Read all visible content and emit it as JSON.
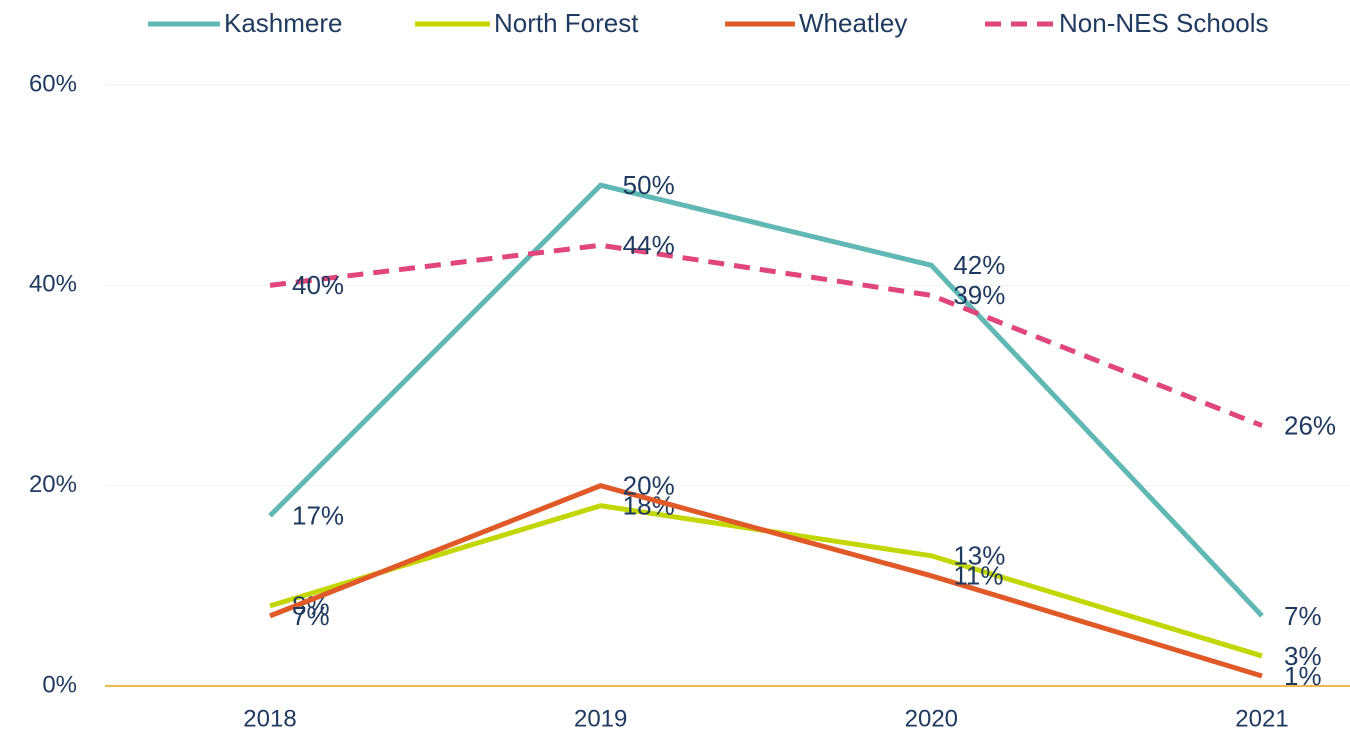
{
  "chart_data": {
    "type": "line",
    "categories": [
      "2018",
      "2019",
      "2020",
      "2021"
    ],
    "series": [
      {
        "name": "Kashmere",
        "color": "#5fb8b4",
        "values": [
          17,
          50,
          42,
          7
        ],
        "value_labels": [
          "17%",
          "50%",
          "42%",
          "7%"
        ]
      },
      {
        "name": "North Forest",
        "color": "#c4d600",
        "values": [
          8,
          18,
          13,
          3
        ],
        "value_labels": [
          "8%",
          "18%",
          "13%",
          "3%"
        ]
      },
      {
        "name": "Wheatley",
        "color": "#e05a28",
        "values": [
          7,
          20,
          11,
          1
        ],
        "value_labels": [
          "7%",
          "20%",
          "11%",
          "1%"
        ]
      },
      {
        "name": "Non-NES Schools",
        "color": "#e0457b",
        "dashed": true,
        "values": [
          40,
          44,
          39,
          26
        ],
        "value_labels": [
          "40%",
          "44%",
          "39%",
          "26%"
        ]
      }
    ],
    "ylim": [
      0,
      60
    ],
    "yticks": [
      {
        "value": 0,
        "label": "0%"
      },
      {
        "value": 20,
        "label": "20%"
      },
      {
        "value": 40,
        "label": "40%"
      },
      {
        "value": 60,
        "label": "60%"
      }
    ],
    "grid": true,
    "legend": "top"
  }
}
